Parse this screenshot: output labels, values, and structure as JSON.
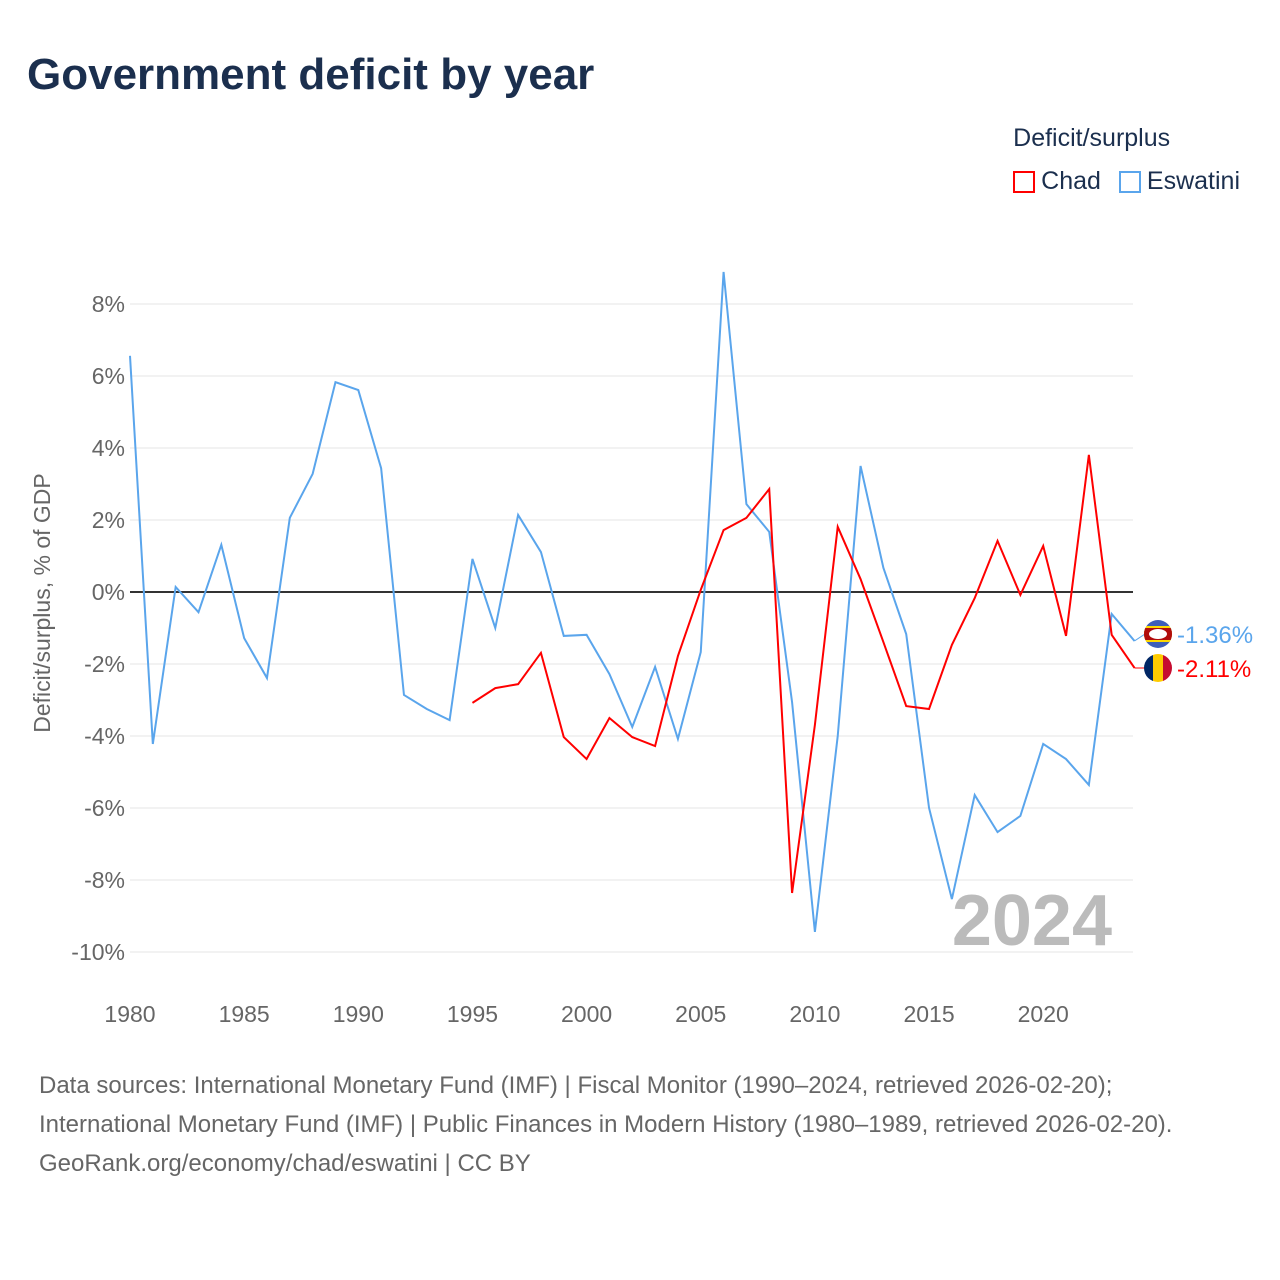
{
  "title": "Government deficit by year",
  "watermark_year": "2024",
  "legend": {
    "title": "Deficit/surplus",
    "items": [
      "Chad",
      "Eswatini"
    ]
  },
  "end_labels": {
    "Eswatini": "-1.36%",
    "Chad": "-2.11%"
  },
  "sources": [
    "Data sources: International Monetary Fund (IMF) | Fiscal Monitor (1990–2024, retrieved 2026-02-20); International Monetary Fund (IMF) | Public Finances in Modern History (1980–1989, retrieved 2026-02-20).",
    "GeoRank.org/economy/chad/eswatini | CC BY"
  ],
  "chart_data": {
    "type": "line",
    "title": "Government deficit by year",
    "xlabel": "",
    "ylabel": "Deficit/surplus, % of GDP",
    "xlim": [
      1980,
      2024
    ],
    "ylim": [
      -10,
      8
    ],
    "xticks": [
      1980,
      1985,
      1990,
      1995,
      2000,
      2005,
      2010,
      2015,
      2020
    ],
    "yticks": [
      -10,
      -8,
      -6,
      -4,
      -2,
      0,
      2,
      4,
      6,
      8
    ],
    "ytick_labels": [
      "-10%",
      "-8%",
      "-6%",
      "-4%",
      "-2%",
      "0%",
      "2%",
      "4%",
      "6%",
      "8%"
    ],
    "grid": true,
    "legend_position": "top-right",
    "series": [
      {
        "name": "Chad",
        "color": "#ff0000",
        "start": 1995,
        "values": [
          -3.08,
          -2.67,
          -2.56,
          -1.69,
          -4.03,
          -4.64,
          -3.5,
          -4.03,
          -4.28,
          -1.78,
          0.06,
          1.72,
          2.06,
          2.86,
          -8.36,
          -3.69,
          1.81,
          0.36,
          -1.39,
          -3.17,
          -3.25,
          -1.47,
          -0.17,
          1.42,
          -0.08,
          1.28,
          -1.22,
          3.81,
          -1.19,
          -2.11
        ]
      },
      {
        "name": "Eswatini",
        "color": "#5aa5ec",
        "start": 1980,
        "values": [
          6.56,
          -4.22,
          0.14,
          -0.56,
          1.31,
          -1.28,
          -2.39,
          2.06,
          3.28,
          5.83,
          5.61,
          3.44,
          -2.86,
          -3.25,
          -3.56,
          0.92,
          -1.0,
          2.14,
          1.11,
          -1.22,
          -1.19,
          -2.28,
          -3.75,
          -2.08,
          -4.08,
          -1.67,
          8.89,
          2.44,
          1.67,
          -3.06,
          -9.44,
          -4.0,
          3.5,
          0.67,
          -1.17,
          -6.0,
          -8.53,
          -5.64,
          -6.67,
          -6.22,
          -4.22,
          -4.64,
          -5.36,
          -0.61,
          -1.36
        ]
      }
    ]
  }
}
